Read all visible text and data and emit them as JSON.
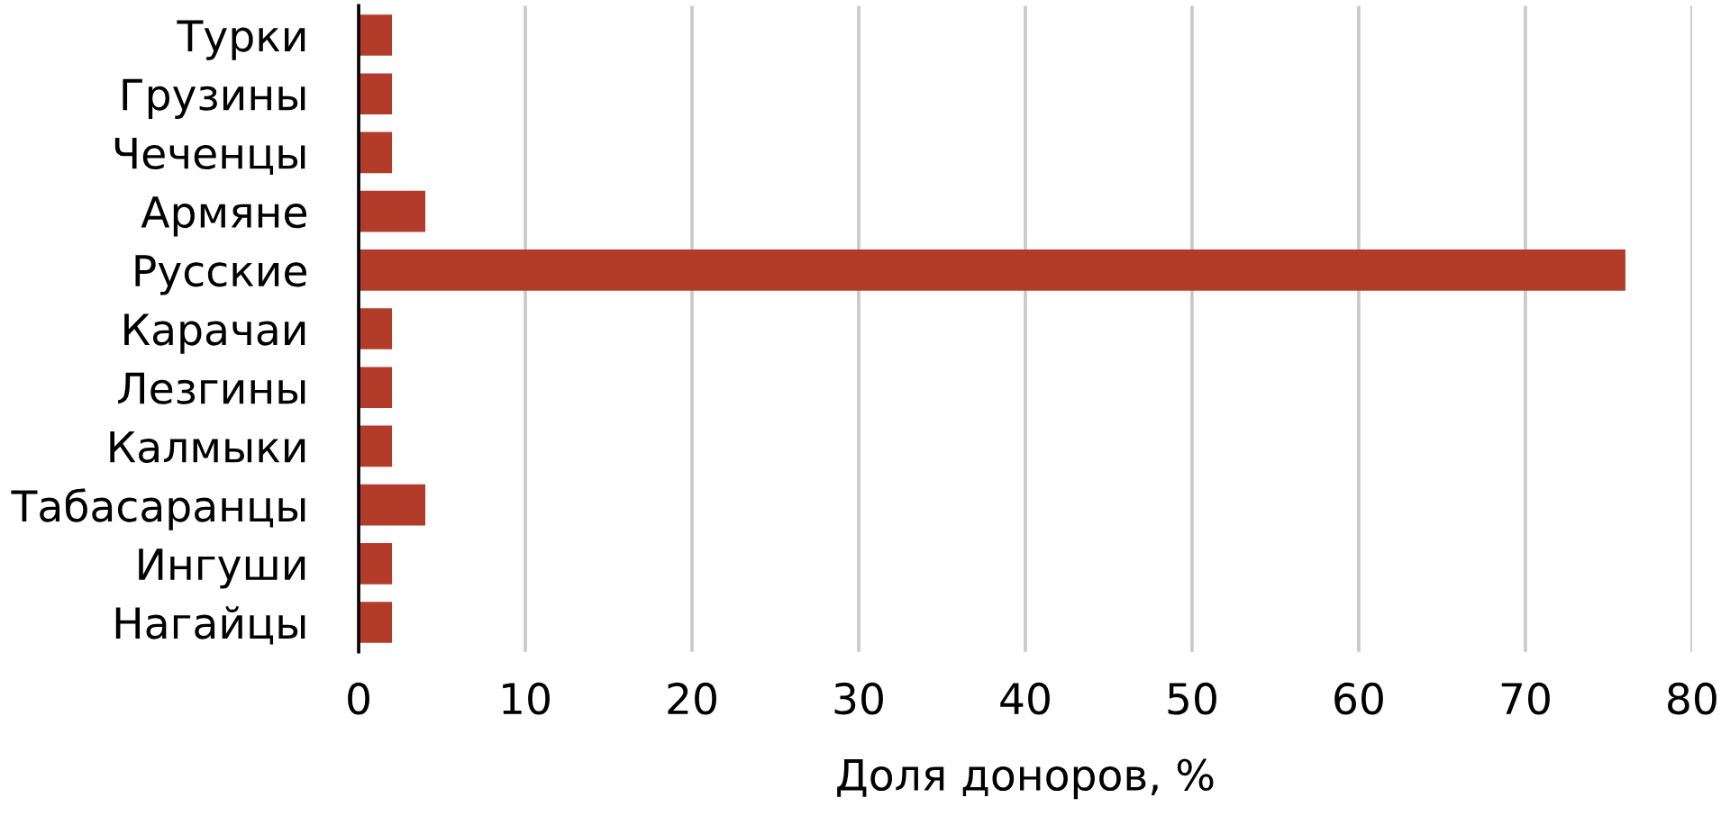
{
  "chart_data": {
    "type": "bar",
    "orientation": "horizontal",
    "categories": [
      "Турки",
      "Грузины",
      "Чеченцы",
      "Армяне",
      "Русские",
      "Карачаи",
      "Лезгины",
      "Калмыки",
      "Табасаранцы",
      "Ингуши",
      "Нагайцы"
    ],
    "values": [
      2,
      2,
      2,
      4,
      76,
      2,
      2,
      2,
      4,
      2,
      2
    ],
    "color": "#b33b2a",
    "xlabel": "Доля доноров, %",
    "xlim": [
      0,
      80
    ],
    "xticks": [
      0,
      10,
      20,
      30,
      40,
      50,
      60,
      70,
      80
    ],
    "grid": "x",
    "legend": false
  }
}
